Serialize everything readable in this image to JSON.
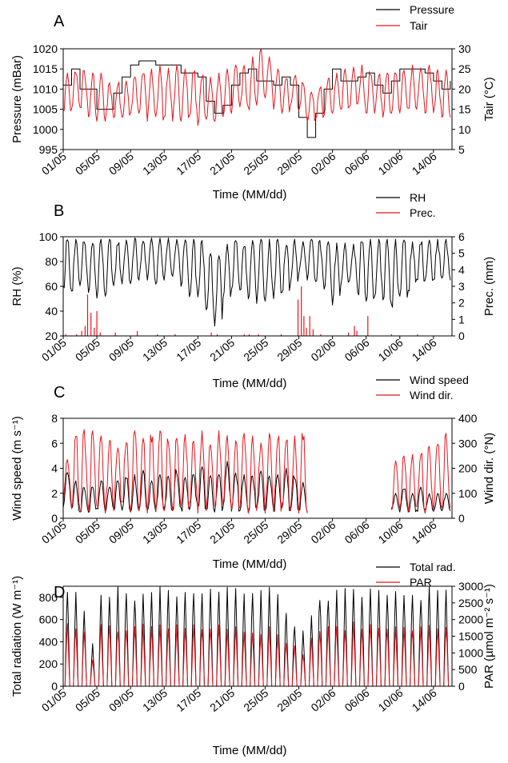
{
  "x_tick_labels": [
    "01/05",
    "05/05",
    "09/05",
    "13/05",
    "17/05",
    "21/05",
    "25/05",
    "29/05",
    "02/06",
    "06/06",
    "10/06",
    "14/06"
  ],
  "chart_data": [
    {
      "panel_label": "A",
      "type": "line",
      "xlabel": "Time (MM/dd)",
      "ylabel_left": "Pressure (mBar)",
      "ylabel_right": "Tair (°C)",
      "ylim_left": [
        995,
        1020
      ],
      "yticks_left": [
        995,
        1000,
        1005,
        1010,
        1015,
        1020
      ],
      "ylim_right": [
        5,
        30
      ],
      "yticks_right": [
        5,
        10,
        15,
        20,
        25,
        30
      ],
      "legend": [
        "Pressure",
        "Tair"
      ],
      "series": [
        {
          "name": "Pressure",
          "axis": "left",
          "color": "#000000",
          "x": [
            1,
            2,
            3,
            5,
            6,
            7,
            8,
            9,
            10,
            11,
            12,
            13,
            14,
            15,
            16,
            17,
            18,
            19,
            20,
            21,
            22,
            23,
            24,
            25,
            26,
            27,
            28,
            29,
            30,
            31,
            32,
            33,
            34,
            35,
            36,
            37,
            38,
            39,
            40,
            41,
            42,
            43,
            44,
            45,
            46,
            47
          ],
          "y": [
            1011,
            1015,
            1010,
            1005,
            1005,
            1009,
            1013,
            1016,
            1017,
            1017,
            1016,
            1016,
            1016,
            1014,
            1014,
            1013,
            1007,
            1004,
            1006,
            1011,
            1014,
            1015,
            1012,
            1012,
            1011,
            1013,
            1011,
            1003,
            998,
            1004,
            1010,
            1015,
            1012,
            1012,
            1013,
            1014,
            1011,
            1009,
            1012,
            1015,
            1015,
            1015,
            1014,
            1012,
            1010,
            1012
          ]
        },
        {
          "name": "Tair",
          "axis": "right",
          "color": "#e8141c",
          "days": [
            1,
            2,
            3,
            4,
            5,
            6,
            7,
            8,
            9,
            10,
            11,
            12,
            13,
            14,
            15,
            16,
            17,
            18,
            19,
            20,
            21,
            22,
            23,
            24,
            25,
            26,
            27,
            28,
            29,
            30,
            31,
            32,
            33,
            34,
            35,
            36,
            37,
            38,
            39,
            40,
            41,
            42,
            43,
            44,
            45,
            46
          ],
          "daily_min": [
            14,
            15,
            15,
            12,
            12,
            12,
            12,
            13,
            14,
            14,
            12,
            12,
            13,
            12,
            12,
            12,
            11,
            11,
            12,
            13,
            14,
            14,
            14,
            16,
            17,
            15,
            14,
            15,
            14,
            12,
            12,
            13,
            14,
            15,
            15,
            15,
            14,
            14,
            13,
            14,
            14,
            14,
            15,
            14,
            13,
            13
          ],
          "daily_max": [
            24,
            25,
            25,
            24,
            24,
            22,
            22,
            22,
            23,
            25,
            25,
            26,
            26,
            26,
            25,
            25,
            24,
            23,
            24,
            25,
            26,
            27,
            28,
            30,
            28,
            25,
            23,
            24,
            22,
            20,
            21,
            23,
            24,
            25,
            26,
            26,
            25,
            24,
            24,
            25,
            26,
            26,
            26,
            26,
            25,
            25
          ]
        }
      ]
    },
    {
      "panel_label": "B",
      "type": "line",
      "xlabel": "Time (MM/dd)",
      "ylabel_left": "RH (%)",
      "ylabel_right": "Prec. (mm)",
      "ylim_left": [
        20,
        100
      ],
      "yticks_left": [
        20,
        40,
        60,
        80,
        100
      ],
      "ylim_right": [
        0,
        6
      ],
      "yticks_right": [
        0,
        1,
        2,
        3,
        4,
        5,
        6
      ],
      "legend": [
        "RH",
        "Prec."
      ],
      "series": [
        {
          "name": "RH",
          "axis": "left",
          "color": "#000000",
          "days": [
            1,
            2,
            3,
            4,
            5,
            6,
            7,
            8,
            9,
            10,
            11,
            12,
            13,
            14,
            15,
            16,
            17,
            18,
            19,
            20,
            21,
            22,
            23,
            24,
            25,
            26,
            27,
            28,
            29,
            30,
            31,
            32,
            33,
            34,
            35,
            36,
            37,
            38,
            39,
            40,
            41,
            42,
            43,
            44,
            45,
            46
          ],
          "daily_min": [
            58,
            55,
            60,
            55,
            50,
            52,
            58,
            62,
            62,
            65,
            65,
            60,
            65,
            68,
            60,
            48,
            45,
            35,
            28,
            48,
            52,
            55,
            50,
            45,
            48,
            50,
            55,
            62,
            68,
            65,
            62,
            55,
            45,
            58,
            60,
            52,
            48,
            52,
            45,
            40,
            50,
            55,
            62,
            62,
            65,
            65
          ],
          "daily_max": [
            98,
            98,
            97,
            96,
            98,
            98,
            98,
            99,
            99,
            99,
            99,
            99,
            99,
            99,
            98,
            98,
            97,
            92,
            90,
            95,
            97,
            97,
            97,
            98,
            98,
            98,
            98,
            98,
            98,
            98,
            97,
            96,
            95,
            95,
            96,
            97,
            98,
            98,
            98,
            98,
            98,
            98,
            98,
            98,
            98,
            98
          ]
        },
        {
          "name": "Prec.",
          "axis": "right",
          "color": "#e8141c",
          "events": [
            [
              1.3,
              0.1
            ],
            [
              2.6,
              0.1
            ],
            [
              3.2,
              0.3
            ],
            [
              3.6,
              0.6
            ],
            [
              3.9,
              2.5
            ],
            [
              4.3,
              1.4
            ],
            [
              4.7,
              0.5
            ],
            [
              5.0,
              1.5
            ],
            [
              5.4,
              0.2
            ],
            [
              7.2,
              0.2
            ],
            [
              9.8,
              0.3
            ],
            [
              12.2,
              0.1
            ],
            [
              14.3,
              0.1
            ],
            [
              18.6,
              0.2
            ],
            [
              19.3,
              0.1
            ],
            [
              22.5,
              0.1
            ],
            [
              23.1,
              0.1
            ],
            [
              24.2,
              0.1
            ],
            [
              26.9,
              0.1
            ],
            [
              28.9,
              2.2
            ],
            [
              29.3,
              3.0
            ],
            [
              29.6,
              1.2
            ],
            [
              29.9,
              0.5
            ],
            [
              30.3,
              1.2
            ],
            [
              30.7,
              0.4
            ],
            [
              31.6,
              0.1
            ],
            [
              34.9,
              0.2
            ],
            [
              35.6,
              0.6
            ],
            [
              35.9,
              0.3
            ],
            [
              37.2,
              1.2
            ],
            [
              40.0,
              0.1
            ],
            [
              43.1,
              0.1
            ]
          ]
        }
      ]
    },
    {
      "panel_label": "C",
      "type": "line",
      "xlabel": "Time (MM/dd)",
      "ylabel_left": "Wind speed (m s⁻¹)",
      "ylabel_right": "Wind dir. (°N)",
      "ylim_left": [
        0,
        8
      ],
      "yticks_left": [
        0,
        2,
        4,
        6,
        8
      ],
      "ylim_right": [
        0,
        400
      ],
      "yticks_right": [
        0,
        100,
        200,
        300,
        400
      ],
      "legend": [
        "Wind speed",
        "Wind dir."
      ],
      "data_gap": [
        29.3,
        39.4
      ],
      "series": [
        {
          "name": "Wind speed",
          "axis": "left",
          "color": "#000000",
          "days": [
            1,
            2,
            3,
            4,
            5,
            6,
            7,
            8,
            9,
            10,
            11,
            12,
            13,
            14,
            15,
            16,
            17,
            18,
            19,
            20,
            21,
            22,
            23,
            24,
            25,
            26,
            27,
            28,
            29,
            40,
            41,
            42,
            43,
            44,
            45,
            46
          ],
          "daily_min": [
            0.6,
            0.5,
            0.5,
            0.4,
            0.5,
            0.5,
            0.6,
            0.5,
            0.5,
            0.6,
            0.6,
            0.5,
            0.5,
            0.6,
            0.5,
            0.6,
            0.5,
            0.5,
            0.5,
            0.5,
            0.5,
            0.6,
            0.5,
            0.5,
            0.6,
            0.5,
            0.5,
            0.6,
            0.5,
            0.6,
            0.5,
            0.5,
            0.5,
            0.6,
            0.5,
            0.6
          ],
          "daily_max": [
            4.0,
            3.0,
            2.5,
            2.5,
            3.0,
            2.5,
            3.0,
            3.5,
            3.5,
            4.0,
            3.0,
            3.5,
            3.5,
            4.0,
            3.5,
            3.5,
            4.5,
            3.5,
            3.5,
            5.0,
            4.0,
            3.5,
            3.5,
            4.0,
            3.5,
            3.5,
            4.0,
            3.5,
            3.0,
            2.0,
            2.5,
            2.0,
            2.5,
            2.0,
            2.0,
            2.0
          ]
        },
        {
          "name": "Wind dir.",
          "axis": "right",
          "color": "#e8141c",
          "days": [
            1,
            2,
            3,
            4,
            5,
            6,
            7,
            8,
            9,
            10,
            11,
            12,
            13,
            14,
            15,
            16,
            17,
            18,
            19,
            20,
            21,
            22,
            23,
            24,
            25,
            26,
            27,
            28,
            29,
            40,
            41,
            42,
            43,
            44,
            45,
            46
          ],
          "daily_min": [
            60,
            40,
            20,
            30,
            20,
            20,
            30,
            40,
            20,
            30,
            20,
            20,
            30,
            20,
            30,
            40,
            20,
            30,
            20,
            20,
            30,
            40,
            20,
            30,
            20,
            20,
            30,
            30,
            20,
            30,
            40,
            20,
            30,
            20,
            30,
            40
          ],
          "daily_max": [
            250,
            340,
            355,
            350,
            330,
            320,
            300,
            340,
            350,
            320,
            340,
            350,
            330,
            350,
            350,
            330,
            350,
            300,
            350,
            340,
            330,
            340,
            330,
            320,
            340,
            340,
            340,
            330,
            350,
            230,
            250,
            270,
            280,
            300,
            320,
            340
          ]
        }
      ]
    },
    {
      "panel_label": "D",
      "type": "line",
      "xlabel": "Time (MM/dd)",
      "ylabel_left": "Total radiation (W m⁻¹)",
      "ylabel_right": "PAR (µmol m⁻² s⁻¹)",
      "ylim_left": [
        0,
        900
      ],
      "yticks_left": [
        0,
        200,
        400,
        600,
        800
      ],
      "ylim_right": [
        0,
        3000
      ],
      "yticks_right": [
        0,
        500,
        1000,
        1500,
        2000,
        2500,
        3000
      ],
      "legend": [
        "Total rad.",
        "PAR"
      ],
      "series": [
        {
          "name": "Total rad.",
          "axis": "left",
          "color": "#000000",
          "days": [
            1,
            2,
            3,
            4,
            5,
            6,
            7,
            8,
            9,
            10,
            11,
            12,
            13,
            14,
            15,
            16,
            17,
            18,
            19,
            20,
            21,
            22,
            23,
            24,
            25,
            26,
            27,
            28,
            29,
            30,
            31,
            32,
            33,
            34,
            35,
            36,
            37,
            38,
            39,
            40,
            41,
            42,
            43,
            44,
            45,
            46
          ],
          "daily_peak": [
            900,
            880,
            700,
            400,
            900,
            900,
            900,
            900,
            900,
            900,
            900,
            900,
            900,
            900,
            900,
            900,
            900,
            900,
            900,
            900,
            900,
            900,
            900,
            900,
            900,
            900,
            700,
            600,
            500,
            700,
            900,
            900,
            900,
            900,
            900,
            900,
            900,
            900,
            900,
            900,
            900,
            900,
            900,
            900,
            900,
            900
          ]
        },
        {
          "name": "PAR",
          "axis": "right",
          "color": "#e8141c",
          "days": [
            1,
            2,
            3,
            4,
            5,
            6,
            7,
            8,
            9,
            10,
            11,
            12,
            13,
            14,
            15,
            16,
            17,
            18,
            19,
            20,
            21,
            22,
            23,
            24,
            25,
            26,
            27,
            28,
            29,
            30,
            31,
            32,
            33,
            34,
            35,
            36,
            37,
            38,
            39,
            40,
            41,
            42,
            43,
            44,
            45,
            46
          ],
          "daily_peak": [
            1900,
            1900,
            1800,
            900,
            1900,
            1900,
            1900,
            1900,
            1900,
            1900,
            1900,
            1900,
            1900,
            1850,
            1900,
            1850,
            1850,
            1850,
            1850,
            1800,
            1800,
            1750,
            1800,
            1750,
            1800,
            1750,
            1400,
            1300,
            1100,
            1500,
            1900,
            1950,
            1900,
            1900,
            1950,
            1850,
            1900,
            1850,
            1900,
            1850,
            1850,
            1900,
            1900,
            1850,
            1900,
            1900
          ]
        }
      ]
    }
  ]
}
